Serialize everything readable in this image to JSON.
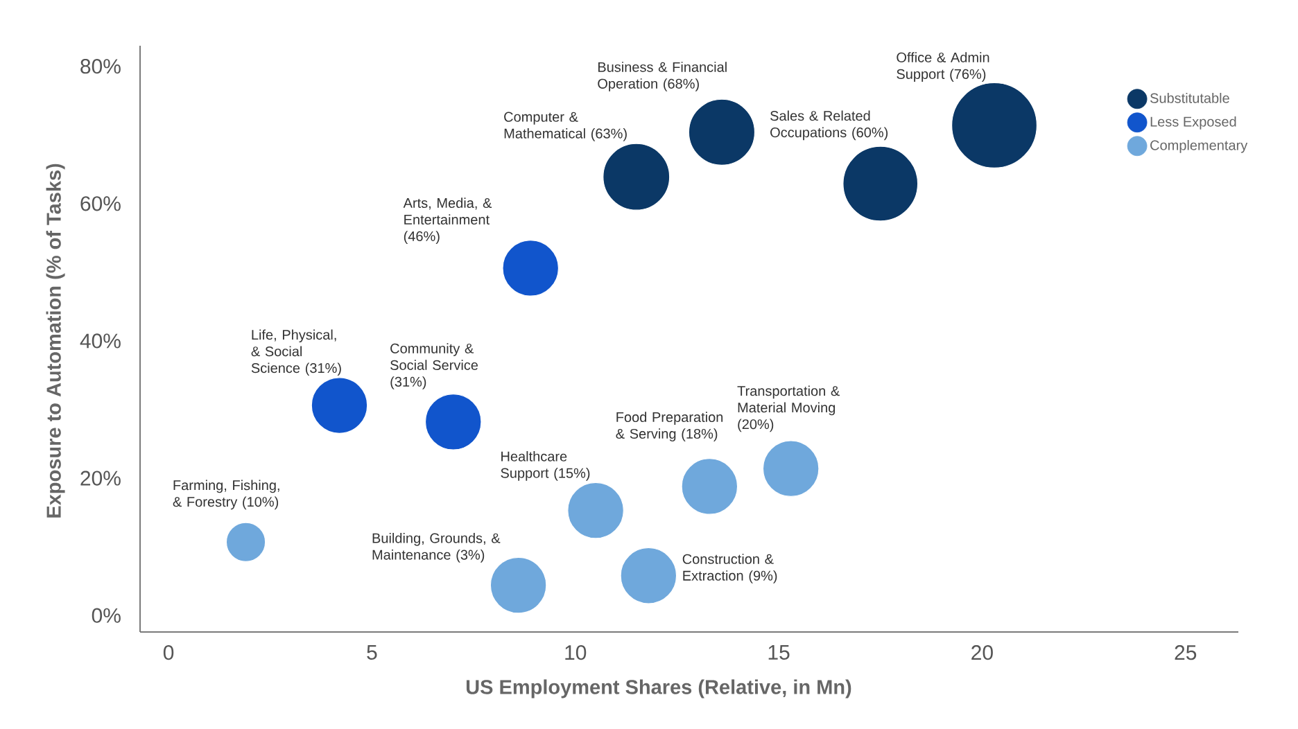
{
  "chart_data": {
    "type": "bubble",
    "xlabel": "US Employment Shares (Relative, in Mn)",
    "ylabel": "Exposure to Automation (% of Tasks)",
    "xlim": [
      -0.7,
      26.3
    ],
    "ylim": [
      -2.4,
      83
    ],
    "xticks": [
      0,
      5,
      10,
      15,
      20,
      25
    ],
    "yticks": [
      {
        "value": 0,
        "label": "0%"
      },
      {
        "value": 20,
        "label": "20%"
      },
      {
        "value": 40,
        "label": "40%"
      },
      {
        "value": 60,
        "label": "60%"
      },
      {
        "value": 80,
        "label": "80%"
      }
    ],
    "legend": "top right",
    "series": [
      {
        "name": "Substitutable",
        "color": "#0b3866",
        "x": [
          20.3,
          13.6,
          11.5,
          17.5
        ],
        "values": [
          71.4,
          70.4,
          63.9,
          62.9
        ],
        "sizes": [
          1,
          0.6,
          0.61,
          0.77
        ]
      },
      {
        "name": "Less Exposed",
        "color": "#1155cc",
        "x": [
          8.9,
          4.2,
          7.0
        ],
        "values": [
          50.6,
          30.6,
          28.2
        ],
        "sizes": [
          0.43,
          0.43,
          0.43
        ]
      },
      {
        "name": "Complementary",
        "color": "#6fa8dc",
        "x": [
          1.9,
          8.6,
          10.5,
          11.8,
          13.3,
          15.3
        ],
        "values": [
          10.7,
          4.4,
          15.3,
          5.8,
          18.8,
          21.4
        ],
        "sizes": [
          0.21,
          0.43,
          0.43,
          0.43,
          0.43,
          0.43
        ]
      }
    ],
    "annotations": [
      "Office & Admin Support (76%)",
      "Business & Financial Operation (68%)",
      "Computer & Mathematical (63%)",
      "Sales & Related Occupations (60%)",
      "Arts, Media, & Entertainment (46%)",
      "Life, Physical, & Social Science (31%)",
      "Community & Social Service (31%)",
      "Farming, Fishing, & Forestry (10%)",
      "Building, Grounds, & Maintenance (3%)",
      "Healthcare Support (15%)",
      "Construction & Extraction  (9%)",
      "Food Preparation & Serving (18%)",
      "Transportation & Material Moving (20%)"
    ]
  }
}
